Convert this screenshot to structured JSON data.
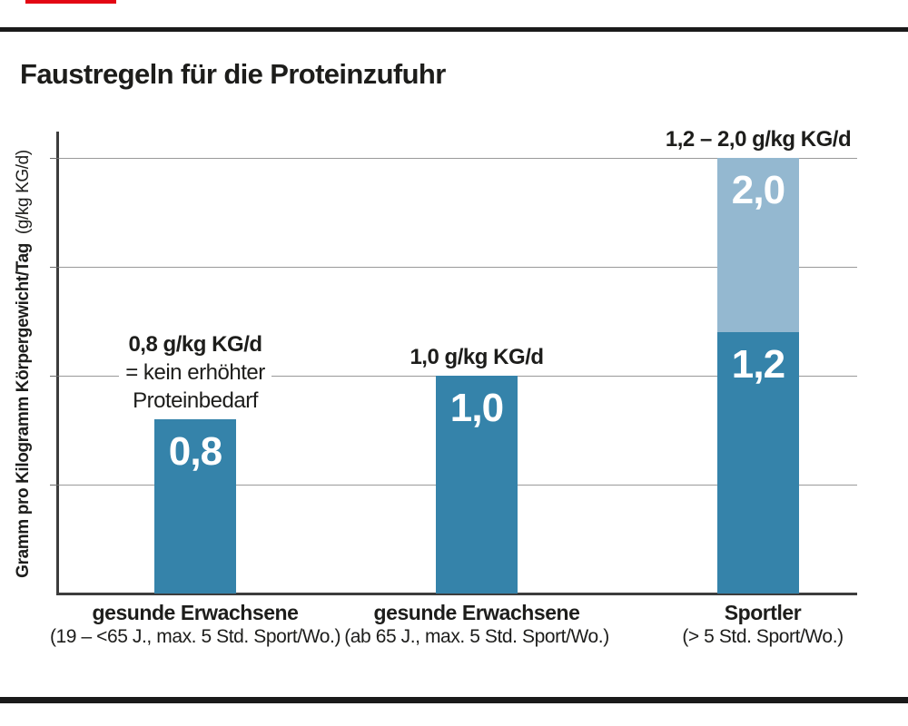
{
  "page": {
    "title": "Faustregeln für die Proteinzufuhr"
  },
  "chart_data": {
    "type": "bar",
    "title": "Faustregeln für die Proteinzufuhr",
    "ylabel": "Gramm pro Kilogramm Körpergewicht/Tag",
    "ylabel_unit": "(g/kg KG/d)",
    "ylim": [
      0,
      2.2
    ],
    "gridlines": [
      0.5,
      1.0,
      1.5,
      2.0
    ],
    "grid": true,
    "y_tick_labels_visible": false,
    "legend": "none",
    "categories": [
      {
        "label": "gesunde Erwachsene",
        "sublabel": "(19 – <65 J., max. 5 Std. Sport/Wo.)"
      },
      {
        "label": "gesunde Erwachsene",
        "sublabel": "(ab 65 J., max. 5 Std. Sport/Wo.)"
      },
      {
        "label": "Sportler",
        "sublabel": "(> 5 Std. Sport/Wo.)"
      }
    ],
    "bars": [
      {
        "value": 0.8,
        "value_label": "0,8",
        "annotation_lines": [
          "0,8 g/kg KG/d",
          "= kein erhöhter",
          "Proteinbedarf"
        ]
      },
      {
        "value": 1.0,
        "value_label": "1,0",
        "annotation_lines": [
          "1,0 g/kg KG/d"
        ]
      },
      {
        "value": 1.2,
        "value_label": "1,2",
        "upper_value": 2.0,
        "upper_value_label": "2,0",
        "annotation_lines": [
          "1,2 – 2,0 g/kg KG/d"
        ]
      }
    ],
    "colors": {
      "bar": "#3583aa",
      "bar_upper": "#94b8d0",
      "grid": "#999999",
      "axis": "#3d3d3d",
      "text": "#1d1d1b",
      "value_text": "#ffffff",
      "accent_red": "#e30613",
      "rule_black": "#1a1a1a"
    }
  }
}
